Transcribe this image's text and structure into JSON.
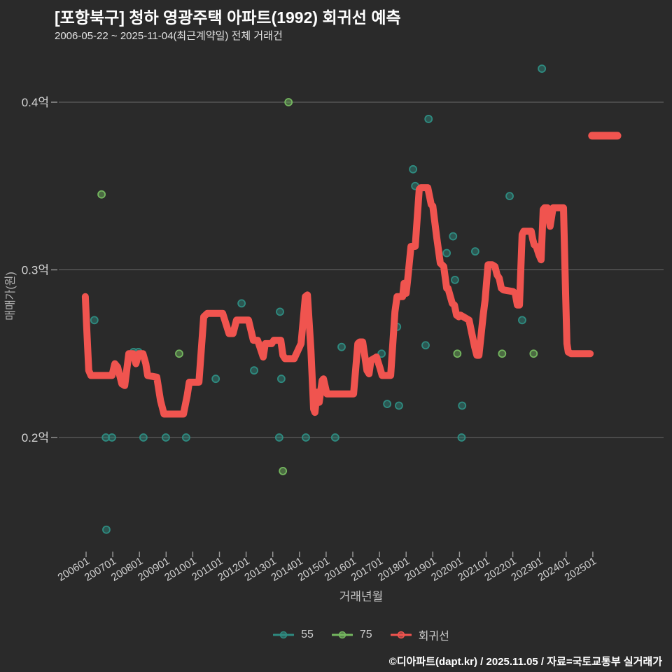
{
  "header": {
    "title": "[포항북구] 청하 영광주택 아파트(1992) 회귀선 예측",
    "subtitle": "2006-05-22 ~ 2025-11-04(최근계약일) 전체 거래건"
  },
  "footer": {
    "text": "©디아파트(dapt.kr) / 2025.11.05 / 자료=국토교통부 실거래가"
  },
  "colors": {
    "background": "#2a2a2a",
    "grid": "#6a6a6a",
    "tick": "#9a9a9a",
    "axis_text": "#cfcfcf",
    "teal": "#2e8b80",
    "green": "#74b75f",
    "red": "#f0544f"
  },
  "legend": {
    "items": [
      {
        "label": "55",
        "color": "#2e8b80"
      },
      {
        "label": "75",
        "color": "#74b75f"
      },
      {
        "label": "회귀선",
        "color": "#f0544f"
      }
    ]
  },
  "axes": {
    "y_title": "매매가(원)",
    "x_title": "거래년월",
    "y_ticks": [
      {
        "label": "0.4억",
        "value": 0.4
      },
      {
        "label": "0.3억",
        "value": 0.3
      },
      {
        "label": "0.2억",
        "value": 0.2
      }
    ],
    "x_ticks": [
      {
        "label": "200601",
        "year": 2006
      },
      {
        "label": "200701",
        "year": 2007
      },
      {
        "label": "200801",
        "year": 2008
      },
      {
        "label": "200901",
        "year": 2009
      },
      {
        "label": "201001",
        "year": 2010
      },
      {
        "label": "201101",
        "year": 2011
      },
      {
        "label": "201201",
        "year": 2012
      },
      {
        "label": "201301",
        "year": 2013
      },
      {
        "label": "201401",
        "year": 2014
      },
      {
        "label": "201501",
        "year": 2015
      },
      {
        "label": "201601",
        "year": 2016
      },
      {
        "label": "201701",
        "year": 2017
      },
      {
        "label": "201801",
        "year": 2018
      },
      {
        "label": "201901",
        "year": 2019
      },
      {
        "label": "202001",
        "year": 2020
      },
      {
        "label": "202101",
        "year": 2021
      },
      {
        "label": "202201",
        "year": 2022
      },
      {
        "label": "202301",
        "year": 2023
      },
      {
        "label": "202401",
        "year": 2024
      },
      {
        "label": "202501",
        "year": 2025
      }
    ]
  },
  "chart_data": {
    "type": "line",
    "title": "[포항북구] 청하 영광주택 아파트(1992) 회귀선 예측",
    "subtitle": "2006-05-22 ~ 2025-11-04(최근계약일) 전체 거래건",
    "xlabel": "거래년월",
    "ylabel": "매매가(원)",
    "x_unit": "year-month (YYYYMM)",
    "y_unit": "억원",
    "xlim": [
      2005.0,
      2027.6
    ],
    "ylim": [
      0.13,
      0.425
    ],
    "grid": true,
    "legend_position": "bottom-center",
    "series": [
      {
        "name": "55",
        "type": "scatter",
        "color": "#2e8b80",
        "points": [
          [
            2006.31,
            0.27
          ],
          [
            2006.74,
            0.2
          ],
          [
            2006.76,
            0.145
          ],
          [
            2006.97,
            0.2
          ],
          [
            2007.78,
            0.251
          ],
          [
            2007.96,
            0.251
          ],
          [
            2008.15,
            0.2
          ],
          [
            2008.99,
            0.2
          ],
          [
            2009.75,
            0.2
          ],
          [
            2010.86,
            0.235
          ],
          [
            2011.83,
            0.28
          ],
          [
            2012.3,
            0.24
          ],
          [
            2013.24,
            0.2
          ],
          [
            2013.27,
            0.275
          ],
          [
            2013.32,
            0.235
          ],
          [
            2014.24,
            0.2
          ],
          [
            2015.34,
            0.2
          ],
          [
            2015.58,
            0.254
          ],
          [
            2017.08,
            0.25
          ],
          [
            2017.29,
            0.22
          ],
          [
            2017.66,
            0.266
          ],
          [
            2017.73,
            0.219
          ],
          [
            2018.26,
            0.36
          ],
          [
            2018.34,
            0.35
          ],
          [
            2018.73,
            0.255
          ],
          [
            2018.84,
            0.39
          ],
          [
            2019.52,
            0.31
          ],
          [
            2019.76,
            0.32
          ],
          [
            2019.83,
            0.294
          ],
          [
            2020.08,
            0.2
          ],
          [
            2020.1,
            0.219
          ],
          [
            2020.59,
            0.311
          ],
          [
            2021.88,
            0.344
          ],
          [
            2022.35,
            0.27
          ],
          [
            2023.09,
            0.42
          ]
        ]
      },
      {
        "name": "75",
        "type": "scatter",
        "color": "#74b75f",
        "points": [
          [
            2006.58,
            0.345
          ],
          [
            2009.49,
            0.25
          ],
          [
            2013.38,
            0.18
          ],
          [
            2013.59,
            0.4
          ],
          [
            2019.92,
            0.25
          ],
          [
            2021.6,
            0.25
          ],
          [
            2022.78,
            0.25
          ]
        ]
      },
      {
        "name": "회귀선",
        "type": "line",
        "color": "#f0544f",
        "points": [
          [
            2005.97,
            0.284
          ],
          [
            2006.02,
            0.266
          ],
          [
            2006.1,
            0.24
          ],
          [
            2006.18,
            0.237
          ],
          [
            2006.97,
            0.237
          ],
          [
            2007.08,
            0.244
          ],
          [
            2007.18,
            0.242
          ],
          [
            2007.34,
            0.232
          ],
          [
            2007.45,
            0.231
          ],
          [
            2007.6,
            0.25
          ],
          [
            2007.76,
            0.25
          ],
          [
            2007.87,
            0.244
          ],
          [
            2007.97,
            0.25
          ],
          [
            2008.13,
            0.25
          ],
          [
            2008.24,
            0.244
          ],
          [
            2008.31,
            0.237
          ],
          [
            2008.65,
            0.236
          ],
          [
            2008.79,
            0.222
          ],
          [
            2008.92,
            0.214
          ],
          [
            2009.65,
            0.214
          ],
          [
            2009.79,
            0.225
          ],
          [
            2009.87,
            0.233
          ],
          [
            2010.23,
            0.233
          ],
          [
            2010.41,
            0.272
          ],
          [
            2010.54,
            0.274
          ],
          [
            2011.12,
            0.274
          ],
          [
            2011.36,
            0.262
          ],
          [
            2011.51,
            0.262
          ],
          [
            2011.64,
            0.27
          ],
          [
            2012.09,
            0.27
          ],
          [
            2012.27,
            0.258
          ],
          [
            2012.43,
            0.258
          ],
          [
            2012.64,
            0.248
          ],
          [
            2012.72,
            0.256
          ],
          [
            2012.96,
            0.256
          ],
          [
            2013.04,
            0.258
          ],
          [
            2013.3,
            0.258
          ],
          [
            2013.38,
            0.249
          ],
          [
            2013.46,
            0.247
          ],
          [
            2013.8,
            0.247
          ],
          [
            2014.06,
            0.256
          ],
          [
            2014.22,
            0.284
          ],
          [
            2014.3,
            0.285
          ],
          [
            2014.43,
            0.252
          ],
          [
            2014.53,
            0.217
          ],
          [
            2014.58,
            0.215
          ],
          [
            2014.66,
            0.227
          ],
          [
            2014.74,
            0.221
          ],
          [
            2014.85,
            0.234
          ],
          [
            2014.9,
            0.235
          ],
          [
            2015.03,
            0.226
          ],
          [
            2016.03,
            0.226
          ],
          [
            2016.19,
            0.256
          ],
          [
            2016.26,
            0.257
          ],
          [
            2016.37,
            0.257
          ],
          [
            2016.53,
            0.24
          ],
          [
            2016.61,
            0.238
          ],
          [
            2016.68,
            0.246
          ],
          [
            2016.89,
            0.248
          ],
          [
            2017.03,
            0.241
          ],
          [
            2017.1,
            0.237
          ],
          [
            2017.42,
            0.237
          ],
          [
            2017.58,
            0.275
          ],
          [
            2017.66,
            0.284
          ],
          [
            2017.87,
            0.284
          ],
          [
            2017.92,
            0.292
          ],
          [
            2018.0,
            0.286
          ],
          [
            2018.05,
            0.293
          ],
          [
            2018.18,
            0.314
          ],
          [
            2018.34,
            0.314
          ],
          [
            2018.49,
            0.348
          ],
          [
            2018.55,
            0.349
          ],
          [
            2018.81,
            0.349
          ],
          [
            2018.94,
            0.339
          ],
          [
            2019.0,
            0.338
          ],
          [
            2019.15,
            0.319
          ],
          [
            2019.28,
            0.304
          ],
          [
            2019.41,
            0.302
          ],
          [
            2019.52,
            0.289
          ],
          [
            2019.57,
            0.289
          ],
          [
            2019.73,
            0.28
          ],
          [
            2019.81,
            0.279
          ],
          [
            2019.89,
            0.273
          ],
          [
            2019.97,
            0.272
          ],
          [
            2020.04,
            0.273
          ],
          [
            2020.15,
            0.272
          ],
          [
            2020.36,
            0.27
          ],
          [
            2020.57,
            0.254
          ],
          [
            2020.65,
            0.249
          ],
          [
            2020.73,
            0.249
          ],
          [
            2020.89,
            0.273
          ],
          [
            2020.96,
            0.282
          ],
          [
            2021.07,
            0.303
          ],
          [
            2021.23,
            0.303
          ],
          [
            2021.33,
            0.302
          ],
          [
            2021.41,
            0.297
          ],
          [
            2021.49,
            0.295
          ],
          [
            2021.57,
            0.289
          ],
          [
            2021.65,
            0.288
          ],
          [
            2022.01,
            0.287
          ],
          [
            2022.09,
            0.286
          ],
          [
            2022.17,
            0.279
          ],
          [
            2022.25,
            0.279
          ],
          [
            2022.35,
            0.321
          ],
          [
            2022.41,
            0.323
          ],
          [
            2022.69,
            0.323
          ],
          [
            2022.75,
            0.318
          ],
          [
            2022.8,
            0.315
          ],
          [
            2022.88,
            0.314
          ],
          [
            2022.98,
            0.309
          ],
          [
            2023.06,
            0.306
          ],
          [
            2023.14,
            0.336
          ],
          [
            2023.19,
            0.337
          ],
          [
            2023.3,
            0.337
          ],
          [
            2023.4,
            0.326
          ],
          [
            2023.51,
            0.337
          ],
          [
            2023.9,
            0.337
          ],
          [
            2023.98,
            0.286
          ],
          [
            2024.03,
            0.256
          ],
          [
            2024.08,
            0.251
          ],
          [
            2024.19,
            0.25
          ],
          [
            2024.9,
            0.25
          ]
        ]
      },
      {
        "name": "회귀선 예측",
        "type": "line",
        "color": "#f0544f",
        "points": [
          [
            2024.97,
            0.38
          ],
          [
            2025.92,
            0.38
          ]
        ]
      }
    ]
  }
}
